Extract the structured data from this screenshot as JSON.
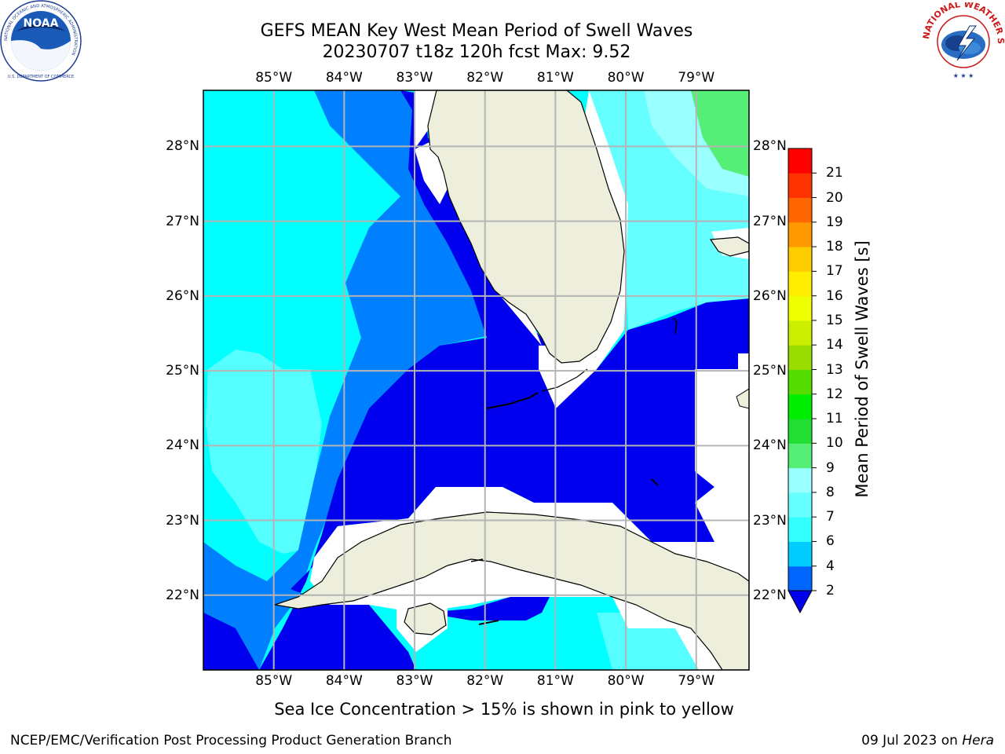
{
  "header": {
    "title_line1": "GEFS MEAN Key West Mean Period of Swell Waves",
    "title_line2": "20230707 t18z 120h fcst   Max: 9.52"
  },
  "logos": {
    "left": "noaa-logo",
    "left_ring_text": "NATIONAL OCEANIC AND ATMOSPHERIC ADMINISTRATION",
    "left_bottom_text": "U.S. DEPARTMENT OF COMMERCE",
    "left_center_text": "NOAA",
    "right": "nws-logo",
    "right_ring_text": "NATIONAL WEATHER SERVICE"
  },
  "map": {
    "lon_ticks": [
      "85°W",
      "84°W",
      "83°W",
      "82°W",
      "81°W",
      "80°W",
      "79°W"
    ],
    "lat_ticks": [
      "28°N",
      "27°N",
      "26°N",
      "25°N",
      "24°N",
      "23°N",
      "22°N"
    ],
    "extent": {
      "lon_min": -86.0,
      "lon_max": -78.25,
      "lat_min": 21.0,
      "lat_max": 28.75
    },
    "land_color": "#eeeedc",
    "gridline_color": "#b4b4b4"
  },
  "colorbar": {
    "label": "Mean Period of Swell Waves [s]",
    "levels": [
      "2",
      "4",
      "6",
      "7",
      "8",
      "9",
      "10",
      "11",
      "12",
      "13",
      "14",
      "15",
      "16",
      "17",
      "18",
      "19",
      "20",
      "21"
    ],
    "colors": [
      "#0066ff",
      "#00ccff",
      "#33ffff",
      "#66ffff",
      "#99ffff",
      "#55ee77",
      "#22dd33",
      "#00ee00",
      "#55dd00",
      "#99dd00",
      "#ccee00",
      "#eeff00",
      "#ffee00",
      "#ffcc00",
      "#ff9900",
      "#ff6600",
      "#ff3300",
      "#ff0000"
    ],
    "under_color": "#0000ee"
  },
  "note": "Sea Ice Concentration > 15% is shown in pink to yellow",
  "footer": {
    "left": "NCEP/EMC/Verification Post Processing Product Generation Branch",
    "right_date": "09 Jul 2023 on ",
    "right_host": "Hera"
  }
}
